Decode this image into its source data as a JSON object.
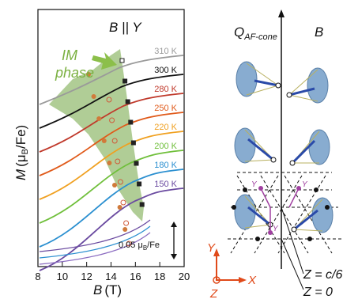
{
  "chart_data": {
    "type": "line",
    "xlabel_var": "B",
    "xlabel_unit": "(T)",
    "ylabel_var": "M",
    "ylabel_unit": "(μ",
    "ylabel_sub": "B",
    "ylabel_tail": "/Fe)",
    "xlim": [
      8,
      20
    ],
    "x_ticks": [
      "8",
      "10",
      "12",
      "14",
      "16",
      "18",
      "20"
    ],
    "field_label": "B || Y",
    "phase_label_1": "IM",
    "phase_label_2": "phase",
    "scale_bar_label": "0.05 μ",
    "scale_bar_sub": "B",
    "scale_bar_tail": "/Fe",
    "series": [
      {
        "name": "310 K",
        "color": "#9a9a9a"
      },
      {
        "name": "300 K",
        "color": "#111111"
      },
      {
        "name": "280 K",
        "color": "#c0392b"
      },
      {
        "name": "250 K",
        "color": "#e05a1a"
      },
      {
        "name": "220 K",
        "color": "#f0a020"
      },
      {
        "name": "200 K",
        "color": "#6fbf3a"
      },
      {
        "name": "180 K",
        "color": "#2a8fd0"
      },
      {
        "name": "150 K",
        "color": "#6a4aa0"
      }
    ]
  },
  "diagram": {
    "q_label": "Q",
    "q_sub": "AF-cone",
    "b_label": "B",
    "y_axis": "Y",
    "x_axis": "X",
    "z_axis": "Z",
    "z_label_1": "Z = c/6",
    "z_label_2": "Z = 0",
    "site_labels": [
      "Y",
      "Y",
      "Y"
    ]
  }
}
